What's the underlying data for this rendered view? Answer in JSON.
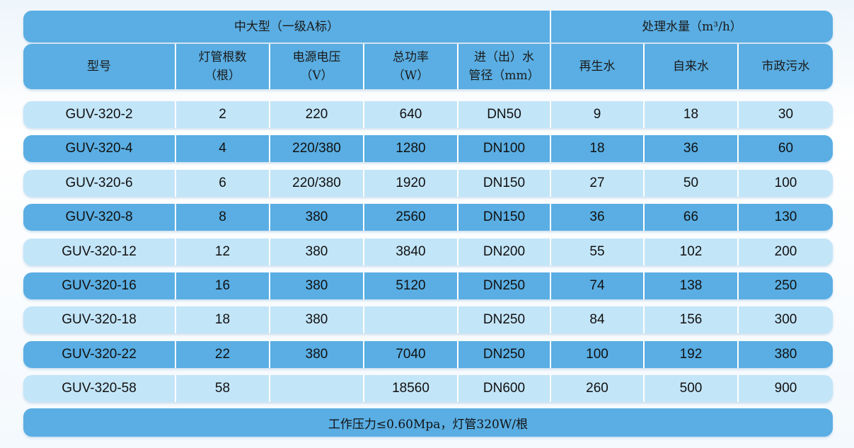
{
  "header": {
    "group_left": "中大型（一级A标）",
    "group_right": "处理水量（m³/h）",
    "columns": [
      "型号",
      "灯管根数\n（根）",
      "电源电压\n（V）",
      "总功率\n（W）",
      "进（出）水\n管径（mm）",
      "再生水",
      "自来水",
      "市政污水"
    ]
  },
  "rows": [
    [
      "GUV-320-2",
      "2",
      "220",
      "640",
      "DN50",
      "9",
      "18",
      "30"
    ],
    [
      "GUV-320-4",
      "4",
      "220/380",
      "1280",
      "DN100",
      "18",
      "36",
      "60"
    ],
    [
      "GUV-320-6",
      "6",
      "220/380",
      "1920",
      "DN150",
      "27",
      "50",
      "100"
    ],
    [
      "GUV-320-8",
      "8",
      "380",
      "2560",
      "DN150",
      "36",
      "66",
      "130"
    ],
    [
      "GUV-320-12",
      "12",
      "380",
      "3840",
      "DN200",
      "55",
      "102",
      "200"
    ],
    [
      "GUV-320-16",
      "16",
      "380",
      "5120",
      "DN250",
      "74",
      "138",
      "250"
    ],
    [
      "GUV-320-18",
      "18",
      "380",
      "",
      "DN250",
      "84",
      "156",
      "300"
    ],
    [
      "GUV-320-22",
      "22",
      "380",
      "7040",
      "DN250",
      "100",
      "192",
      "380"
    ],
    [
      "GUV-320-58",
      "58",
      "",
      "18560",
      "DN600",
      "260",
      "500",
      "900"
    ]
  ],
  "footer": "工作压力≤0.60Mpa，灯管320W/根",
  "colors": {
    "dark_blue": "#5aaee3",
    "light_blue": "#c3e5f8"
  }
}
